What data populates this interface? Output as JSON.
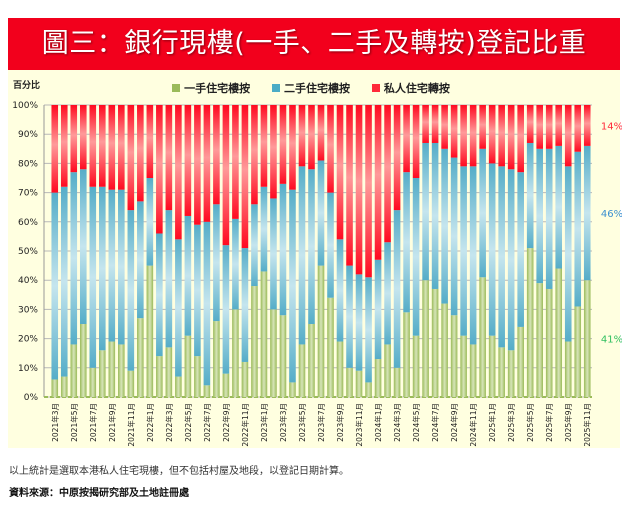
{
  "title": "圖三：銀行現樓(一手、二手及轉按)登記比重",
  "note": "以上統計是選取本港私人住宅現樓，但不包括村屋及地段，以登記日期計算。",
  "source": "資料來源：中原按揭研究部及土地註冊處",
  "chart_data": {
    "type": "bar",
    "stacked": true,
    "ylabel": "百分比",
    "ylim": [
      0,
      100
    ],
    "yticks": [
      "0%",
      "10%",
      "20%",
      "30%",
      "40%",
      "50%",
      "60%",
      "70%",
      "80%",
      "90%",
      "100%"
    ],
    "grid": true,
    "legend_placement": "top",
    "categories": [
      "2021年3月",
      "2021年4月",
      "2021年5月",
      "2021年6月",
      "2021年7月",
      "2021年8月",
      "2021年9月",
      "2021年10月",
      "2021年11月",
      "2021年12月",
      "2022年1月",
      "2022年2月",
      "2022年3月",
      "2022年4月",
      "2022年5月",
      "2022年6月",
      "2022年7月",
      "2022年8月",
      "2022年9月",
      "2022年10月",
      "2022年11月",
      "2022年12月",
      "2023年1月",
      "2023年2月",
      "2023年3月",
      "2023年4月",
      "2023年5月",
      "2023年6月",
      "2023年7月",
      "2023年8月",
      "2023年9月",
      "2023年10月",
      "2023年11月",
      "2023年12月",
      "2024年1月",
      "2024年2月",
      "2024年3月",
      "2024年4月",
      "2024年5月",
      "2024年6月",
      "2024年7月",
      "2024年8月",
      "2024年9月",
      "2024年10月",
      "2024年11月",
      "2024年12月",
      "2025年1月",
      "2025年2月",
      "2025年3月",
      "2025年4月",
      "2025年5月",
      "2025年6月",
      "2025年7月",
      "2025年8月",
      "2025年9月",
      "2025年10月",
      "2025年11月"
    ],
    "series": [
      {
        "name": "一手住宅樓按",
        "color": "#9bbb59",
        "values": [
          6,
          7,
          18,
          25,
          10,
          16,
          19,
          18,
          9,
          27,
          45,
          14,
          17,
          7,
          21,
          14,
          4,
          26,
          8,
          30,
          12,
          38,
          43,
          30,
          28,
          5,
          18,
          25,
          45,
          34,
          19,
          10,
          9,
          5,
          13,
          18,
          10,
          29,
          21,
          40,
          37,
          32,
          28,
          21,
          18,
          41,
          21,
          17,
          16,
          24,
          51,
          39,
          37,
          44,
          19,
          31,
          40
        ]
      },
      {
        "name": "二手住宅樓按",
        "color": "#4bacc6",
        "values": [
          64,
          65,
          59,
          53,
          62,
          56,
          52,
          53,
          55,
          40,
          30,
          42,
          47,
          47,
          41,
          45,
          56,
          40,
          44,
          31,
          39,
          28,
          29,
          38,
          45,
          66,
          61,
          53,
          36,
          36,
          35,
          35,
          33,
          36,
          34,
          35,
          54,
          48,
          54,
          47,
          50,
          53,
          54,
          58,
          61,
          44,
          59,
          62,
          62,
          53,
          36,
          46,
          48,
          42,
          60,
          53,
          46
        ]
      },
      {
        "name": "私人住宅轉按",
        "color": "#ff2a3a",
        "values": [
          30,
          28,
          23,
          22,
          28,
          28,
          29,
          29,
          36,
          33,
          25,
          44,
          36,
          46,
          38,
          41,
          40,
          34,
          48,
          39,
          49,
          34,
          28,
          32,
          27,
          29,
          21,
          22,
          19,
          30,
          46,
          55,
          58,
          59,
          53,
          47,
          36,
          23,
          25,
          13,
          13,
          15,
          18,
          21,
          21,
          15,
          20,
          21,
          22,
          23,
          13,
          15,
          15,
          14,
          21,
          16,
          14
        ]
      }
    ],
    "end_labels": [
      "14%",
      "46%",
      "41%"
    ],
    "end_label_colors": [
      "#ff2a3a",
      "#3a8fd0",
      "#2fbf5f"
    ]
  }
}
